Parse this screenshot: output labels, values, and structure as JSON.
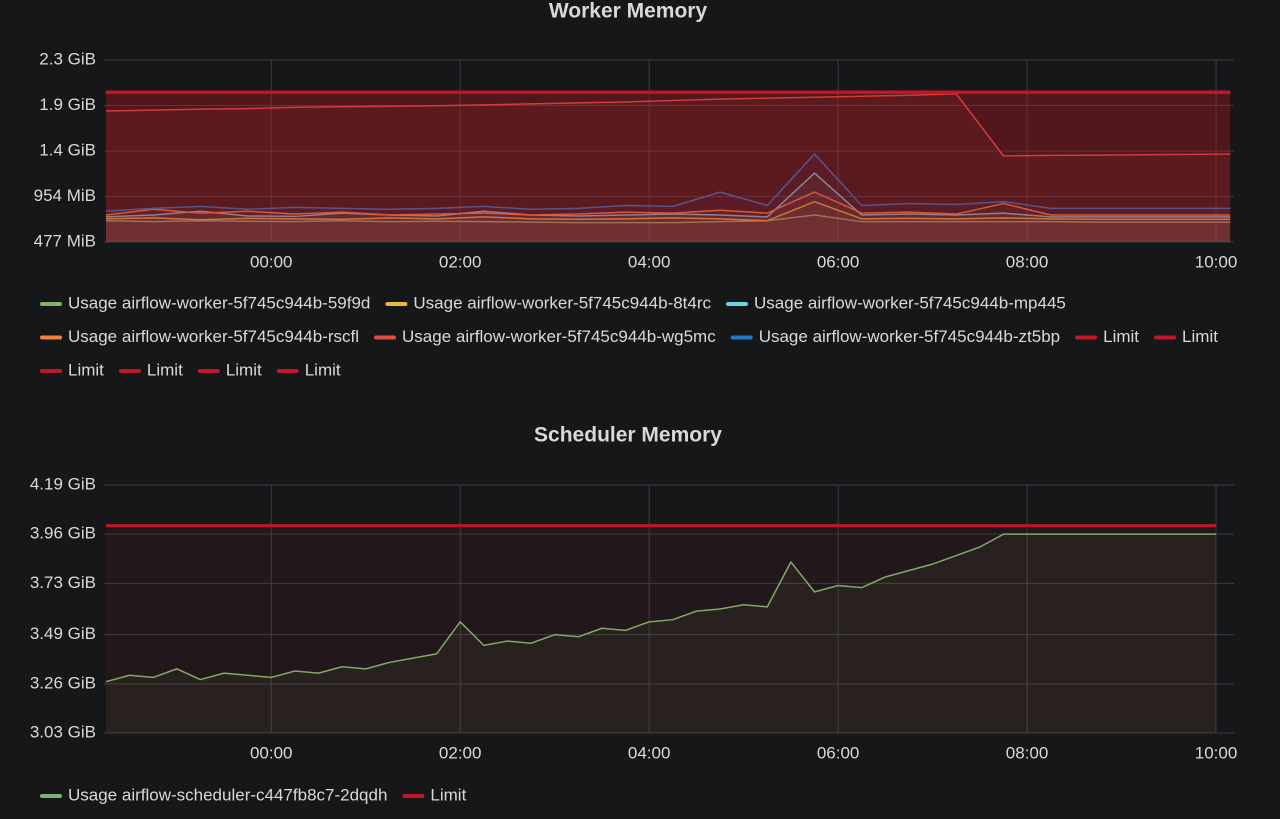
{
  "chart_data": [
    {
      "type": "line",
      "title": "Worker Memory",
      "grid": true,
      "x": [
        -1.75,
        -1.25,
        -0.75,
        -0.25,
        0.25,
        0.75,
        1.25,
        1.75,
        2.25,
        2.75,
        3.25,
        3.75,
        4.25,
        4.75,
        5.25,
        5.75,
        6.25,
        6.75,
        7.25,
        7.75,
        8.25,
        8.75,
        9.25,
        9.75,
        10.15
      ],
      "xlim": [
        -1.77,
        10.19
      ],
      "xticks": [
        {
          "value": 0,
          "label": "00:00"
        },
        {
          "value": 2,
          "label": "02:00"
        },
        {
          "value": 4,
          "label": "04:00"
        },
        {
          "value": 6,
          "label": "06:00"
        },
        {
          "value": 8,
          "label": "08:00"
        },
        {
          "value": 10,
          "label": "10:00"
        }
      ],
      "ylim": [
        477,
        2385
      ],
      "yticks": [
        {
          "value": 477,
          "label": "477 MiB"
        },
        {
          "value": 954,
          "label": "954 MiB"
        },
        {
          "value": 1431,
          "label": "1.4 GiB"
        },
        {
          "value": 1908,
          "label": "1.9 GiB"
        },
        {
          "value": 2385,
          "label": "2.3 GiB"
        }
      ],
      "series": [
        {
          "name": "Usage airflow-worker-5f745c944b-59f9d",
          "color": "#7eb26d",
          "values": [
            700,
            690,
            700,
            695,
            690,
            700,
            690,
            695,
            690,
            685,
            680,
            680,
            680,
            690,
            700,
            760,
            690,
            690,
            690,
            690,
            690,
            685,
            685,
            685,
            685
          ]
        },
        {
          "name": "Usage airflow-worker-5f745c944b-8t4rc",
          "color": "#eab839",
          "values": [
            720,
            730,
            710,
            725,
            720,
            715,
            730,
            720,
            740,
            720,
            715,
            720,
            730,
            720,
            700,
            900,
            720,
            725,
            720,
            730,
            720,
            715,
            715,
            715,
            715
          ]
        },
        {
          "name": "Usage airflow-worker-5f745c944b-mp445",
          "color": "#6ed0e0",
          "values": [
            740,
            760,
            800,
            750,
            745,
            780,
            760,
            750,
            800,
            760,
            750,
            760,
            770,
            760,
            740,
            1200,
            760,
            770,
            760,
            780,
            740,
            740,
            740,
            740,
            740
          ]
        },
        {
          "name": "Usage airflow-worker-5f745c944b-rscfl",
          "color": "#ef843c",
          "values": [
            760,
            820,
            780,
            800,
            770,
            790,
            760,
            770,
            780,
            760,
            770,
            790,
            780,
            810,
            780,
            1000,
            780,
            790,
            770,
            880,
            760,
            760,
            760,
            760,
            760
          ]
        },
        {
          "name": "Usage airflow-worker-5f745c944b-wg5mc",
          "color": "#e24d42",
          "values": [
            1850,
            1860,
            1870,
            1875,
            1890,
            1895,
            1900,
            1905,
            1915,
            1925,
            1935,
            1945,
            1960,
            1975,
            1985,
            1995,
            2005,
            2015,
            2030,
            1380,
            1385,
            1388,
            1392,
            1395,
            1400
          ]
        },
        {
          "name": "Usage airflow-worker-5f745c944b-zt5bp",
          "color": "#1f78c1",
          "values": [
            800,
            830,
            850,
            820,
            840,
            830,
            820,
            830,
            850,
            820,
            830,
            860,
            850,
            1000,
            860,
            1400,
            860,
            880,
            870,
            900,
            830,
            830,
            830,
            830,
            830
          ]
        },
        {
          "name": "Limit",
          "color": "#c4162a",
          "values": [
            2048,
            2048,
            2048,
            2048,
            2048,
            2048,
            2048,
            2048,
            2048,
            2048,
            2048,
            2048,
            2048,
            2048,
            2048,
            2048,
            2048,
            2048,
            2048,
            2048,
            2048,
            2048,
            2048,
            2048,
            2048
          ]
        },
        {
          "name": "Limit",
          "color": "#c4162a",
          "values": [
            2048,
            2048,
            2048,
            2048,
            2048,
            2048,
            2048,
            2048,
            2048,
            2048,
            2048,
            2048,
            2048,
            2048,
            2048,
            2048,
            2048,
            2048,
            2048,
            2048,
            2048,
            2048,
            2048,
            2048,
            2048
          ]
        },
        {
          "name": "Limit",
          "color": "#c4162a",
          "values": [
            2048,
            2048,
            2048,
            2048,
            2048,
            2048,
            2048,
            2048,
            2048,
            2048,
            2048,
            2048,
            2048,
            2048,
            2048,
            2048,
            2048,
            2048,
            2048,
            2048,
            2048,
            2048,
            2048,
            2048,
            2048
          ]
        },
        {
          "name": "Limit",
          "color": "#c4162a",
          "values": [
            2048,
            2048,
            2048,
            2048,
            2048,
            2048,
            2048,
            2048,
            2048,
            2048,
            2048,
            2048,
            2048,
            2048,
            2048,
            2048,
            2048,
            2048,
            2048,
            2048,
            2048,
            2048,
            2048,
            2048,
            2048
          ]
        },
        {
          "name": "Limit",
          "color": "#c4162a",
          "values": [
            2048,
            2048,
            2048,
            2048,
            2048,
            2048,
            2048,
            2048,
            2048,
            2048,
            2048,
            2048,
            2048,
            2048,
            2048,
            2048,
            2048,
            2048,
            2048,
            2048,
            2048,
            2048,
            2048,
            2048,
            2048
          ]
        },
        {
          "name": "Limit",
          "color": "#c4162a",
          "values": [
            2048,
            2048,
            2048,
            2048,
            2048,
            2048,
            2048,
            2048,
            2048,
            2048,
            2048,
            2048,
            2048,
            2048,
            2048,
            2048,
            2048,
            2048,
            2048,
            2048,
            2048,
            2048,
            2048,
            2048,
            2048
          ]
        }
      ]
    },
    {
      "type": "line",
      "title": "Scheduler Memory",
      "grid": true,
      "x": [
        -1.75,
        -1.5,
        -1.25,
        -1,
        -0.75,
        -0.5,
        -0.25,
        0,
        0.25,
        0.5,
        0.75,
        1,
        1.25,
        1.5,
        1.75,
        2,
        2.25,
        2.5,
        2.75,
        3,
        3.25,
        3.5,
        3.75,
        4,
        4.25,
        4.5,
        4.75,
        5,
        5.25,
        5.5,
        5.75,
        6,
        6.25,
        6.5,
        6.75,
        7,
        7.25,
        7.5,
        7.75,
        8,
        8.25,
        8.5,
        8.75,
        9,
        9.25,
        9.5,
        9.75,
        10
      ],
      "xlim": [
        -1.77,
        10.19
      ],
      "xticks": [
        {
          "value": 0,
          "label": "00:00"
        },
        {
          "value": 2,
          "label": "02:00"
        },
        {
          "value": 4,
          "label": "04:00"
        },
        {
          "value": 6,
          "label": "06:00"
        },
        {
          "value": 8,
          "label": "08:00"
        },
        {
          "value": 10,
          "label": "10:00"
        }
      ],
      "ylim": [
        3.03,
        4.19
      ],
      "yticks": [
        {
          "value": 3.03,
          "label": "3.03 GiB"
        },
        {
          "value": 3.26,
          "label": "3.26 GiB"
        },
        {
          "value": 3.49,
          "label": "3.49 GiB"
        },
        {
          "value": 3.73,
          "label": "3.73 GiB"
        },
        {
          "value": 3.96,
          "label": "3.96 GiB"
        },
        {
          "value": 4.19,
          "label": "4.19 GiB"
        }
      ],
      "series": [
        {
          "name": "Usage airflow-scheduler-c447fb8c7-2dqdh",
          "color": "#7eb26d",
          "values": [
            3.27,
            3.3,
            3.29,
            3.33,
            3.28,
            3.31,
            3.3,
            3.29,
            3.32,
            3.31,
            3.34,
            3.33,
            3.36,
            3.38,
            3.4,
            3.55,
            3.44,
            3.46,
            3.45,
            3.49,
            3.48,
            3.52,
            3.51,
            3.55,
            3.56,
            3.6,
            3.61,
            3.63,
            3.62,
            3.83,
            3.69,
            3.72,
            3.71,
            3.76,
            3.79,
            3.82,
            3.86,
            3.9,
            3.96,
            3.96,
            3.96,
            3.96,
            3.96,
            3.96,
            3.96,
            3.96,
            3.96,
            3.96
          ]
        },
        {
          "name": "Limit",
          "color": "#c4162a",
          "values": [
            4,
            4,
            4,
            4,
            4,
            4,
            4,
            4,
            4,
            4,
            4,
            4,
            4,
            4,
            4,
            4,
            4,
            4,
            4,
            4,
            4,
            4,
            4,
            4,
            4,
            4,
            4,
            4,
            4,
            4,
            4,
            4,
            4,
            4,
            4,
            4,
            4,
            4,
            4,
            4,
            4,
            4,
            4,
            4,
            4,
            4,
            4,
            4
          ]
        }
      ]
    }
  ]
}
